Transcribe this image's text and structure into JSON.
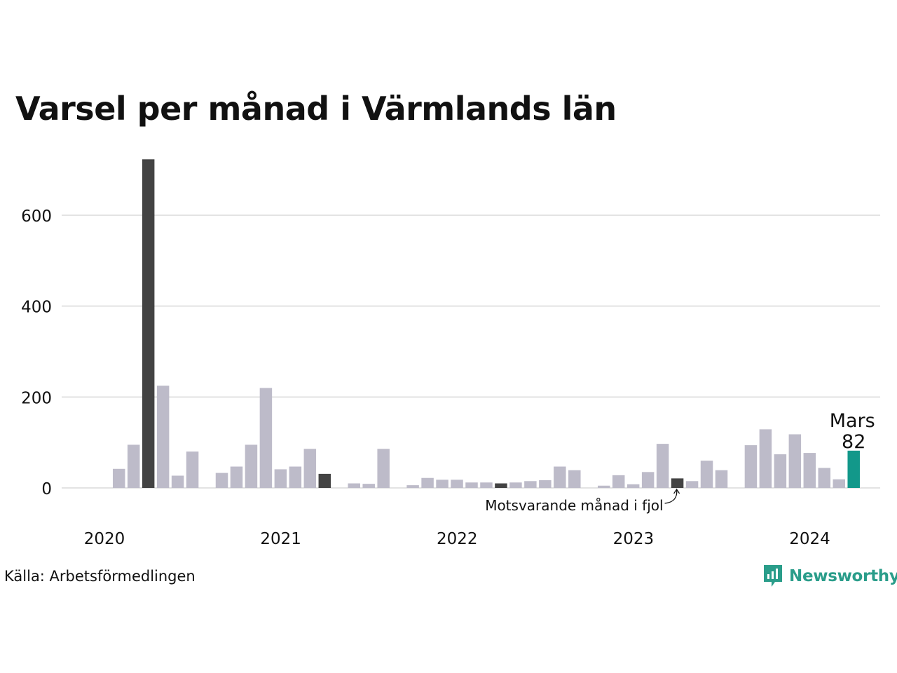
{
  "title": "Varsel per månad i Värmlands län",
  "source": "Källa: Arbetsförmedlingen",
  "brand": {
    "name": "Newsworthy",
    "icon": "newsworthy-logo-icon"
  },
  "colors": {
    "default": "#bdbbc9",
    "highlight_past": "#434343",
    "highlight_current": "#12988a",
    "grid": "#e3e3e3"
  },
  "annotations": {
    "current": {
      "label": "Mars",
      "value_label": "82"
    },
    "previous_year": {
      "label": "Motsvarande månad i fjol"
    }
  },
  "chart_data": {
    "type": "bar",
    "title": "Varsel per månad i Värmlands län",
    "xlabel": "",
    "ylabel": "",
    "ylim": [
      0,
      720
    ],
    "yticks": [
      0,
      200,
      400,
      600
    ],
    "xticks": [
      "2020",
      "2021",
      "2022",
      "2023",
      "2024"
    ],
    "grid": true,
    "legend": "none",
    "series": [
      {
        "values": [
          null,
          42,
          95,
          723,
          225,
          27,
          80,
          null,
          33,
          47,
          95,
          220,
          41,
          47,
          86,
          31,
          null,
          10,
          9,
          86,
          null,
          6,
          22,
          18,
          18,
          12,
          12,
          10,
          12,
          15,
          17,
          47,
          39,
          null,
          5,
          28,
          8,
          35,
          97,
          21,
          15,
          60,
          39,
          null,
          94,
          129,
          74,
          118,
          77,
          44,
          19,
          82
        ],
        "highlights": {
          "3": "highlight_past",
          "15": "highlight_past",
          "27": "highlight_past",
          "39": "highlight_past",
          "51": "highlight_current"
        }
      }
    ]
  }
}
